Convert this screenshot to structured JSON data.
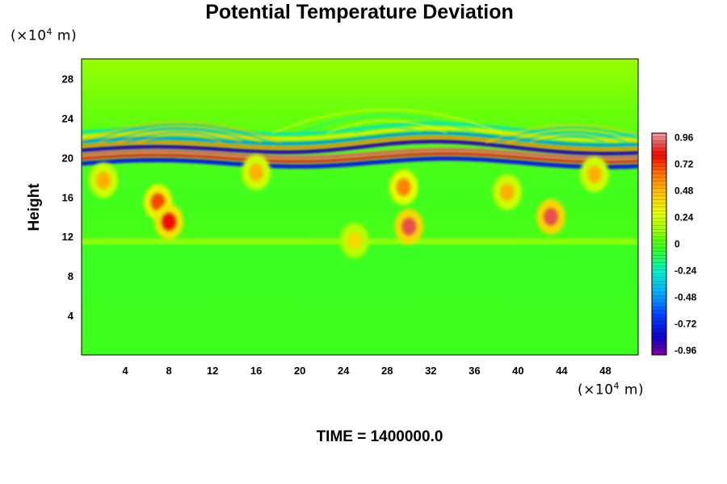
{
  "title": "Potential Temperature Deviation",
  "y_unit": {
    "prefix": "(×10",
    "exp": "4",
    "suffix": " m)"
  },
  "x_unit": {
    "prefix": "(×10",
    "exp": "4",
    "suffix": " m)"
  },
  "time_label": "TIME = 1400000.0",
  "chart_data": {
    "type": "heatmap",
    "title": "Potential Temperature Deviation",
    "xlabel": "",
    "ylabel": "Height",
    "x_ticks": [
      "4",
      "8",
      "12",
      "16",
      "20",
      "24",
      "28",
      "32",
      "36",
      "40",
      "44",
      "48"
    ],
    "y_ticks": [
      "4",
      "8",
      "12",
      "16",
      "20",
      "24",
      "28"
    ],
    "xlim": [
      0,
      51
    ],
    "ylim": [
      0,
      30
    ],
    "colorbar": {
      "min": -1.0,
      "max": 1.0,
      "tick_labels": [
        "0.96",
        "0.72",
        "0.48",
        "0.24",
        "0",
        "-0.24",
        "-0.48",
        "-0.72",
        "-0.96"
      ],
      "tick_values": [
        0.96,
        0.72,
        0.48,
        0.24,
        0,
        -0.24,
        -0.48,
        -0.72,
        -0.96
      ]
    },
    "features": [
      {
        "x": 7,
        "y": 15.5,
        "value": 0.7
      },
      {
        "x": 8,
        "y": 13.5,
        "value": 0.8
      },
      {
        "x": 29.5,
        "y": 17,
        "value": 0.6
      },
      {
        "x": 30,
        "y": 13,
        "value": 0.9
      },
      {
        "x": 39,
        "y": 16.5,
        "value": 0.5
      },
      {
        "x": 43,
        "y": 14,
        "value": 0.9
      },
      {
        "x": 2,
        "y": 17.7,
        "value": 0.5
      },
      {
        "x": 16,
        "y": 18.5,
        "value": 0.5
      },
      {
        "x": 47,
        "y": 18.3,
        "value": 0.5
      },
      {
        "x": 25,
        "y": 11.6,
        "value": 0.4
      }
    ],
    "background_value": 0.0
  }
}
